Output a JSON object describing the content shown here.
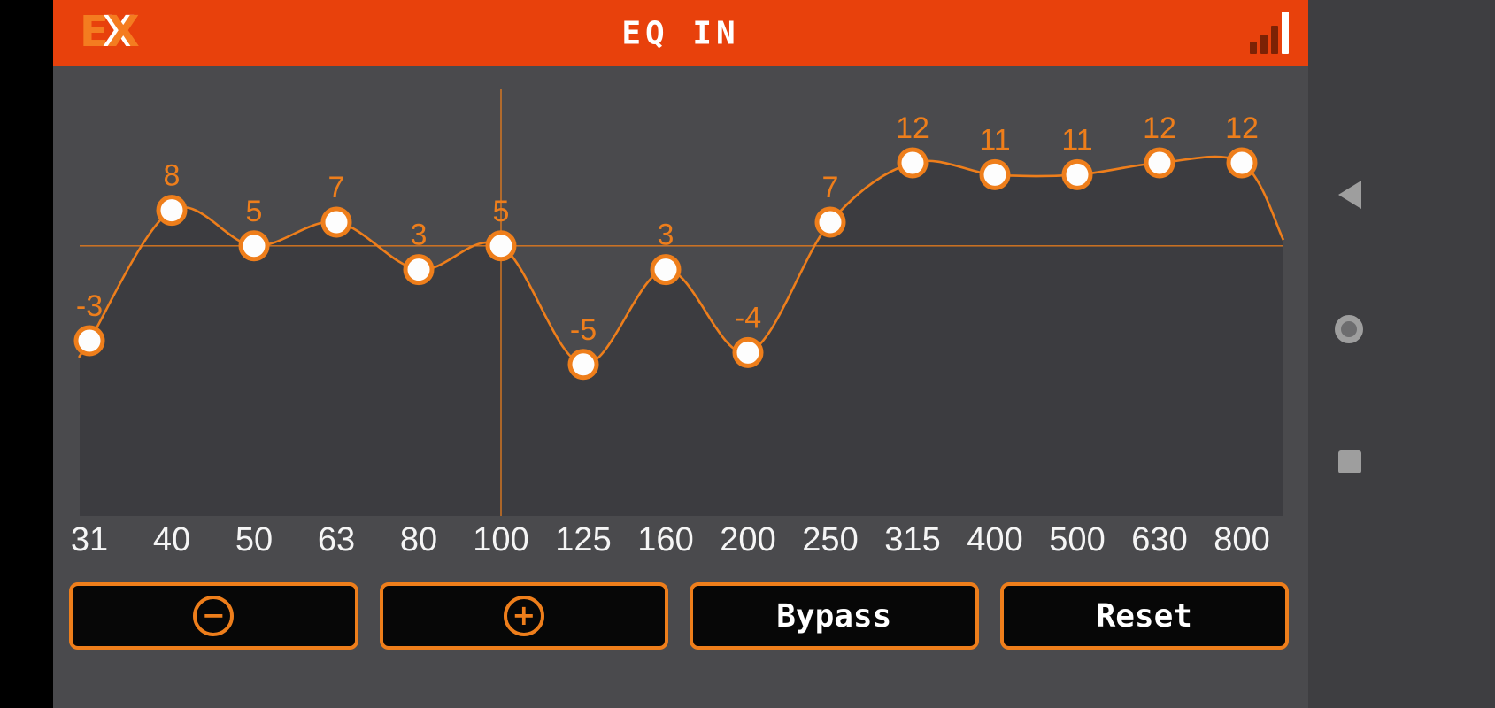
{
  "header": {
    "logo_e": "E",
    "logo_x": "X",
    "title": "EQ IN",
    "signal_icon": "signal-strength-bars"
  },
  "chart_data": {
    "type": "line",
    "title": "EQ IN",
    "categories": [
      "31",
      "40",
      "50",
      "63",
      "80",
      "100",
      "125",
      "160",
      "200",
      "250",
      "315",
      "400",
      "500",
      "630",
      "800"
    ],
    "values": [
      -3,
      8,
      5,
      7,
      3,
      5,
      -5,
      3,
      -4,
      7,
      12,
      11,
      11,
      12,
      12
    ],
    "selected_index": 5,
    "selected_category": "100",
    "selected_value": 5,
    "ylim": [
      -18,
      15
    ],
    "grid": "crosshair-through-selected-point",
    "legend": "none",
    "accent_color": "#ee7e1b",
    "point_fill": "#fdfdfd",
    "tick_label_color": "#f5f5f5"
  },
  "controls": {
    "minus_glyph": "−",
    "plus_glyph": "+",
    "bypass_label": "Bypass",
    "reset_label": "Reset"
  },
  "nav": {
    "back_icon": "back-triangle",
    "home_icon": "home-circle",
    "recents_icon": "recents-square"
  },
  "colors": {
    "header_bg": "#e8410c",
    "content_bg": "#4a4a4d",
    "accent": "#ee7e1b",
    "button_bg": "#070707",
    "nav_area_bg": "#3e3e41"
  }
}
